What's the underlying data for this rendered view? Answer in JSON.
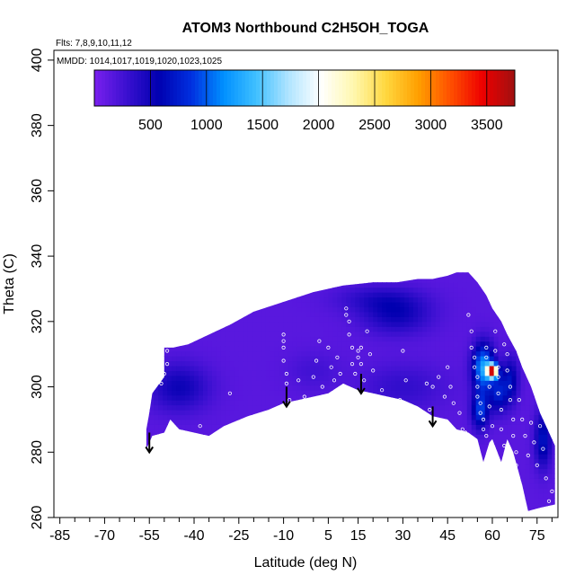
{
  "chart_data": {
    "type": "heatmap",
    "title": "ATOM3 Northbound C2H5OH_TOGA",
    "flights_note": "Flts: 7,8,9,10,11,12",
    "dates_note": "MMDD: 1014,1017,1019,1020,1023,1025",
    "xlabel": "Latitude (deg N)",
    "ylabel": "Theta (C)",
    "xlim": [
      -87,
      82
    ],
    "ylim": [
      260,
      403
    ],
    "xticks": [
      -85,
      -70,
      -55,
      -40,
      -25,
      -10,
      5,
      15,
      30,
      45,
      60,
      75
    ],
    "xtick_labels": [
      "-85",
      "-70",
      "-55",
      "-40",
      "-25",
      "-10",
      "5",
      "15",
      "30",
      "45",
      "60",
      "75"
    ],
    "xminor": [
      -80,
      -75,
      -65,
      -60,
      -50,
      -45,
      -35,
      -30,
      -20,
      -15,
      -5,
      0,
      10,
      20,
      25,
      35,
      40,
      50,
      55,
      65,
      70,
      80
    ],
    "yticks": [
      260,
      280,
      300,
      320,
      340,
      360,
      380,
      400
    ],
    "ytick_labels": [
      "260",
      "280",
      "300",
      "320",
      "340",
      "360",
      "380",
      "400"
    ],
    "colorbar": {
      "min": 0,
      "max": 3750,
      "ticks": [
        500,
        1000,
        1500,
        2000,
        2500,
        3000,
        3500
      ],
      "tick_labels": [
        "500",
        "1000",
        "1500",
        "2000",
        "2500",
        "3000",
        "3500"
      ],
      "colors": [
        "#7a20ee",
        "#3a10d0",
        "#0000b0",
        "#0030e0",
        "#0090ff",
        "#40c0ff",
        "#b0e4ff",
        "#ffffff",
        "#fff8b0",
        "#ffd840",
        "#ffa000",
        "#ff5000",
        "#ee0000",
        "#a01010"
      ]
    },
    "background_value": 150,
    "domain_polygon": [
      [
        -56,
        281
      ],
      [
        -54,
        285
      ],
      [
        -50,
        286
      ],
      [
        -48,
        290
      ],
      [
        -45,
        287
      ],
      [
        -40,
        286
      ],
      [
        -35,
        285
      ],
      [
        -30,
        288
      ],
      [
        -22,
        291
      ],
      [
        -15,
        293
      ],
      [
        -10,
        295
      ],
      [
        -5,
        296
      ],
      [
        0,
        297
      ],
      [
        5,
        298
      ],
      [
        10,
        301
      ],
      [
        15,
        299
      ],
      [
        20,
        298
      ],
      [
        25,
        297
      ],
      [
        30,
        296
      ],
      [
        35,
        294
      ],
      [
        40,
        291
      ],
      [
        45,
        290
      ],
      [
        48,
        287
      ],
      [
        52,
        286
      ],
      [
        55,
        284
      ],
      [
        57,
        277
      ],
      [
        59,
        283
      ],
      [
        60,
        284
      ],
      [
        63,
        277
      ],
      [
        65,
        284
      ],
      [
        67,
        280
      ],
      [
        70,
        270
      ],
      [
        72,
        262
      ],
      [
        76,
        263
      ],
      [
        81,
        264
      ],
      [
        81,
        282
      ],
      [
        76,
        292
      ],
      [
        73,
        300
      ],
      [
        70,
        306
      ],
      [
        68,
        311
      ],
      [
        65,
        316
      ],
      [
        63,
        320
      ],
      [
        60,
        324
      ],
      [
        58,
        328
      ],
      [
        55,
        332
      ],
      [
        52,
        335
      ],
      [
        48,
        335
      ],
      [
        45,
        334
      ],
      [
        40,
        333
      ],
      [
        35,
        333
      ],
      [
        28,
        332
      ],
      [
        20,
        332
      ],
      [
        10,
        331
      ],
      [
        0,
        329
      ],
      [
        -10,
        326
      ],
      [
        -20,
        323
      ],
      [
        -28,
        319
      ],
      [
        -35,
        316
      ],
      [
        -42,
        313
      ],
      [
        -47,
        312
      ],
      [
        -50,
        312
      ],
      [
        -50,
        303
      ],
      [
        -54,
        298
      ],
      [
        -55,
        292
      ],
      [
        -56,
        287
      ]
    ],
    "blobs": [
      {
        "lat": -45,
        "theta": 300,
        "value": 520,
        "sigma_lat": 7,
        "sigma_theta": 5
      },
      {
        "lat": 28,
        "theta": 322,
        "value": 500,
        "sigma_lat": 8,
        "sigma_theta": 4
      },
      {
        "lat": 22,
        "theta": 327,
        "value": 380,
        "sigma_lat": 10,
        "sigma_theta": 3
      },
      {
        "lat": 30,
        "theta": 300,
        "value": 330,
        "sigma_lat": 10,
        "sigma_theta": 5
      },
      {
        "lat": 0,
        "theta": 305,
        "value": 260,
        "sigma_lat": 6,
        "sigma_theta": 4
      },
      {
        "lat": 57,
        "theta": 306,
        "value": 1250,
        "sigma_lat": 2.5,
        "sigma_theta": 5
      },
      {
        "lat": 60,
        "theta": 305,
        "value": 3400,
        "sigma_lat": 1.2,
        "sigma_theta": 1.4
      },
      {
        "lat": 56,
        "theta": 293,
        "value": 900,
        "sigma_lat": 2,
        "sigma_theta": 4
      },
      {
        "lat": 62,
        "theta": 298,
        "value": 700,
        "sigma_lat": 2,
        "sigma_theta": 4
      },
      {
        "lat": 66,
        "theta": 302,
        "value": 650,
        "sigma_lat": 2,
        "sigma_theta": 5
      },
      {
        "lat": 77,
        "theta": 284,
        "value": 700,
        "sigma_lat": 2,
        "sigma_theta": 6
      }
    ],
    "arrows": [
      [
        -55,
        286
      ],
      [
        -9,
        300
      ],
      [
        16,
        304
      ],
      [
        40,
        294
      ]
    ],
    "sample_points": [
      [
        -49,
        311
      ],
      [
        -49,
        307
      ],
      [
        -50,
        304
      ],
      [
        -51,
        301
      ],
      [
        -38,
        288
      ],
      [
        -28,
        298
      ],
      [
        -10,
        316
      ],
      [
        -10,
        314
      ],
      [
        -10,
        312
      ],
      [
        -10,
        308
      ],
      [
        -9,
        304
      ],
      [
        -9,
        301
      ],
      [
        -8,
        296
      ],
      [
        -5,
        302
      ],
      [
        -3,
        297
      ],
      [
        0,
        303
      ],
      [
        1,
        308
      ],
      [
        2,
        314
      ],
      [
        3,
        300
      ],
      [
        5,
        312
      ],
      [
        6,
        306
      ],
      [
        7,
        302
      ],
      [
        8,
        309
      ],
      [
        9,
        304
      ],
      [
        10,
        300
      ],
      [
        11,
        324
      ],
      [
        11,
        322
      ],
      [
        12,
        320
      ],
      [
        12,
        316
      ],
      [
        13,
        312
      ],
      [
        13,
        307
      ],
      [
        14,
        304
      ],
      [
        15,
        311
      ],
      [
        15,
        309
      ],
      [
        16,
        312
      ],
      [
        16,
        307
      ],
      [
        17,
        302
      ],
      [
        18,
        317
      ],
      [
        19,
        310
      ],
      [
        20,
        305
      ],
      [
        23,
        299
      ],
      [
        29,
        296
      ],
      [
        30,
        311
      ],
      [
        31,
        302
      ],
      [
        38,
        301
      ],
      [
        39,
        293
      ],
      [
        40,
        300
      ],
      [
        42,
        303
      ],
      [
        44,
        297
      ],
      [
        45,
        306
      ],
      [
        46,
        300
      ],
      [
        47,
        295
      ],
      [
        49,
        292
      ],
      [
        50,
        287
      ],
      [
        51,
        286
      ],
      [
        52,
        322
      ],
      [
        53,
        317
      ],
      [
        53,
        312
      ],
      [
        54,
        309
      ],
      [
        54,
        306
      ],
      [
        55,
        303
      ],
      [
        55,
        300
      ],
      [
        55,
        297
      ],
      [
        56,
        295
      ],
      [
        56,
        292
      ],
      [
        57,
        290
      ],
      [
        57,
        287
      ],
      [
        58,
        285
      ],
      [
        58,
        312
      ],
      [
        58,
        309
      ],
      [
        59,
        300
      ],
      [
        59,
        294
      ],
      [
        60,
        288
      ],
      [
        60,
        282
      ],
      [
        61,
        317
      ],
      [
        61,
        311
      ],
      [
        62,
        306
      ],
      [
        62,
        303
      ],
      [
        62,
        298
      ],
      [
        63,
        293
      ],
      [
        63,
        287
      ],
      [
        64,
        282
      ],
      [
        64,
        313
      ],
      [
        65,
        310
      ],
      [
        65,
        305
      ],
      [
        66,
        300
      ],
      [
        66,
        296
      ],
      [
        67,
        290
      ],
      [
        67,
        285
      ],
      [
        68,
        280
      ],
      [
        68,
        276
      ],
      [
        69,
        296
      ],
      [
        70,
        290
      ],
      [
        71,
        285
      ],
      [
        72,
        279
      ],
      [
        73,
        289
      ],
      [
        74,
        283
      ],
      [
        75,
        276
      ],
      [
        76,
        288
      ],
      [
        77,
        281
      ],
      [
        78,
        272
      ],
      [
        79,
        265
      ],
      [
        80,
        268
      ]
    ]
  }
}
